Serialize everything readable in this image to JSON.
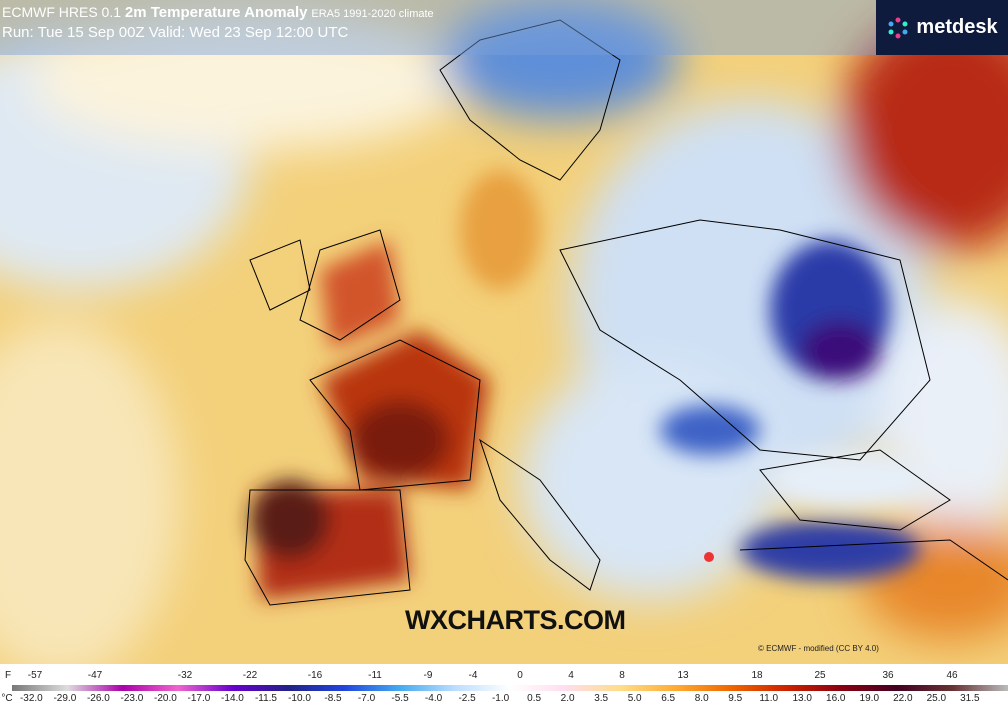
{
  "header": {
    "model": "ECMWF HRES 0.1",
    "parameter": "2m Temperature Anomaly",
    "climate": "ERA5 1991-2020 climate",
    "run": "Run: Tue 15 Sep 00Z Valid: Wed 23 Sep 12:00 UTC"
  },
  "brand": "metdesk",
  "watermark": "WXCHARTS.COM",
  "credit": "© ECMWF - modified (CC BY 4.0)",
  "legend": {
    "f_unit": "F",
    "f_labels": [
      "-57",
      "-47",
      "-32",
      "-22",
      "-16",
      "-11",
      "-9",
      "-4",
      "0",
      "4",
      "8",
      "13",
      "18",
      "25",
      "36",
      "46"
    ],
    "c_unit": "°C",
    "c_labels": [
      "-32.0",
      "-29.0",
      "-26.0",
      "-23.0",
      "-20.0",
      "-17.0",
      "-14.0",
      "-11.5",
      "-10.0",
      "-8.5",
      "-7.0",
      "-5.5",
      "-4.0",
      "-2.5",
      "-1.0",
      "0.5",
      "2.0",
      "3.5",
      "5.0",
      "6.5",
      "8.0",
      "9.5",
      "11.0",
      "13.0",
      "16.0",
      "19.0",
      "22.0",
      "25.0",
      "31.5"
    ]
  }
}
